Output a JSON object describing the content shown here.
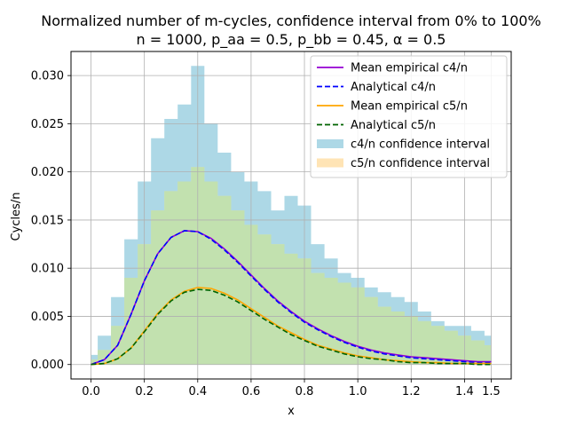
{
  "chart_data": {
    "type": "line",
    "title": "Normalized number of m-cycles, confidence interval from 0% to 100%",
    "subtitle": "n = 1000, p_aa = 0.5, p_bb = 0.45, α = 0.5",
    "xlabel": "x",
    "ylabel": "Cycles/n",
    "xlim": [
      -0.075,
      1.575
    ],
    "ylim": [
      -0.0015,
      0.0325
    ],
    "xticks": [
      0.0,
      0.2,
      0.4,
      0.6,
      0.8,
      1.0,
      1.2,
      1.4,
      1.5
    ],
    "xtick_labels": [
      "0.0",
      "0.2",
      "0.4",
      "0.6",
      "0.8",
      "1.0",
      "1.2",
      "1.4",
      "1.5"
    ],
    "yticks": [
      0.0,
      0.005,
      0.01,
      0.015,
      0.02,
      0.025,
      0.03
    ],
    "ytick_labels": [
      "0.000",
      "0.005",
      "0.010",
      "0.015",
      "0.020",
      "0.025",
      "0.030"
    ],
    "grid": true,
    "legend_position": "top-right",
    "x": [
      0.0,
      0.05,
      0.1,
      0.15,
      0.2,
      0.25,
      0.3,
      0.35,
      0.4,
      0.45,
      0.5,
      0.55,
      0.6,
      0.65,
      0.7,
      0.75,
      0.8,
      0.85,
      0.9,
      0.95,
      1.0,
      1.05,
      1.1,
      1.15,
      1.2,
      1.25,
      1.3,
      1.35,
      1.4,
      1.45,
      1.5
    ],
    "series": [
      {
        "name": "Mean empirical c4/n",
        "style": "solid",
        "color": "#9400d3",
        "values": [
          0.0,
          0.0005,
          0.002,
          0.0052,
          0.0087,
          0.0115,
          0.0132,
          0.0139,
          0.0138,
          0.0131,
          0.012,
          0.0107,
          0.0093,
          0.0079,
          0.0066,
          0.0055,
          0.0045,
          0.0037,
          0.003,
          0.0024,
          0.0019,
          0.0015,
          0.0012,
          0.001,
          0.0008,
          0.0007,
          0.0006,
          0.0005,
          0.0004,
          0.0003,
          0.0003
        ]
      },
      {
        "name": "Analytical c4/n",
        "style": "dashed",
        "color": "#0000ff",
        "values": [
          0.0,
          0.0005,
          0.002,
          0.0052,
          0.0087,
          0.0115,
          0.0132,
          0.0139,
          0.0138,
          0.013,
          0.0119,
          0.0106,
          0.0092,
          0.0078,
          0.0065,
          0.0054,
          0.0044,
          0.0036,
          0.0029,
          0.0023,
          0.0018,
          0.0014,
          0.0011,
          0.0009,
          0.0007,
          0.0006,
          0.0005,
          0.0004,
          0.0003,
          0.0002,
          0.0002
        ]
      },
      {
        "name": "Mean empirical c5/n",
        "style": "solid",
        "color": "#ffa500",
        "values": [
          0.0,
          0.0001,
          0.0006,
          0.0017,
          0.0035,
          0.0053,
          0.0067,
          0.0076,
          0.008,
          0.0079,
          0.0074,
          0.0067,
          0.0058,
          0.0049,
          0.004,
          0.0033,
          0.0026,
          0.002,
          0.0016,
          0.0012,
          0.0009,
          0.0007,
          0.0005,
          0.0004,
          0.0003,
          0.0002,
          0.0002,
          0.0001,
          0.0001,
          0.0001,
          0.0001
        ]
      },
      {
        "name": "Analytical c5/n",
        "style": "dashed",
        "color": "#006400",
        "values": [
          0.0,
          0.0001,
          0.0006,
          0.0017,
          0.0034,
          0.0052,
          0.0066,
          0.0075,
          0.0078,
          0.0077,
          0.0072,
          0.0065,
          0.0056,
          0.0047,
          0.0039,
          0.0031,
          0.0025,
          0.0019,
          0.0015,
          0.0011,
          0.0008,
          0.0006,
          0.0005,
          0.0003,
          0.0002,
          0.0002,
          0.0001,
          0.0001,
          0.0001,
          0.0,
          0.0
        ]
      }
    ],
    "bands": [
      {
        "name": "c4/n confidence interval",
        "color": "#add8e6",
        "x": [
          0.0,
          0.05,
          0.1,
          0.15,
          0.2,
          0.25,
          0.3,
          0.35,
          0.4,
          0.45,
          0.5,
          0.55,
          0.6,
          0.65,
          0.7,
          0.75,
          0.8,
          0.85,
          0.9,
          0.95,
          1.0,
          1.05,
          1.1,
          1.15,
          1.2,
          1.25,
          1.3,
          1.35,
          1.4,
          1.45,
          1.5
        ],
        "lower": [
          0.0,
          0.0,
          0.0,
          0.0,
          0.0,
          0.0,
          0.0,
          0.0,
          0.0,
          0.0,
          0.0,
          0.0,
          0.0,
          0.0,
          0.0,
          0.0,
          0.0,
          0.0,
          0.0,
          0.0,
          0.0,
          0.0,
          0.0,
          0.0,
          0.0,
          0.0,
          0.0,
          0.0,
          0.0,
          0.0,
          0.0
        ],
        "upper": [
          0.001,
          0.003,
          0.007,
          0.013,
          0.019,
          0.0235,
          0.0255,
          0.027,
          0.031,
          0.025,
          0.022,
          0.02,
          0.019,
          0.018,
          0.016,
          0.0175,
          0.0165,
          0.0125,
          0.011,
          0.0095,
          0.009,
          0.008,
          0.0075,
          0.007,
          0.0065,
          0.0055,
          0.0045,
          0.004,
          0.004,
          0.0035,
          0.003
        ]
      },
      {
        "name": "c5/n confidence interval",
        "color": "#ffe4b5",
        "x": [
          0.0,
          0.05,
          0.1,
          0.15,
          0.2,
          0.25,
          0.3,
          0.35,
          0.4,
          0.45,
          0.5,
          0.55,
          0.6,
          0.65,
          0.7,
          0.75,
          0.8,
          0.85,
          0.9,
          0.95,
          1.0,
          1.05,
          1.1,
          1.15,
          1.2,
          1.25,
          1.3,
          1.35,
          1.4,
          1.45,
          1.5
        ],
        "lower": [
          0.0,
          0.0,
          0.0,
          0.0,
          0.0,
          0.0,
          0.0,
          0.0,
          0.0,
          0.0,
          0.0,
          0.0,
          0.0,
          0.0,
          0.0,
          0.0,
          0.0,
          0.0,
          0.0,
          0.0,
          0.0,
          0.0,
          0.0,
          0.0,
          0.0,
          0.0,
          0.0,
          0.0,
          0.0,
          0.0,
          0.0
        ],
        "upper": [
          0.0005,
          0.0015,
          0.004,
          0.009,
          0.0125,
          0.016,
          0.018,
          0.019,
          0.0205,
          0.019,
          0.0175,
          0.016,
          0.0145,
          0.0135,
          0.0125,
          0.0115,
          0.011,
          0.0095,
          0.009,
          0.0085,
          0.008,
          0.007,
          0.006,
          0.0055,
          0.005,
          0.0045,
          0.004,
          0.0035,
          0.003,
          0.0025,
          0.002
        ]
      }
    ],
    "overlap_color": "#b5e2a8"
  }
}
